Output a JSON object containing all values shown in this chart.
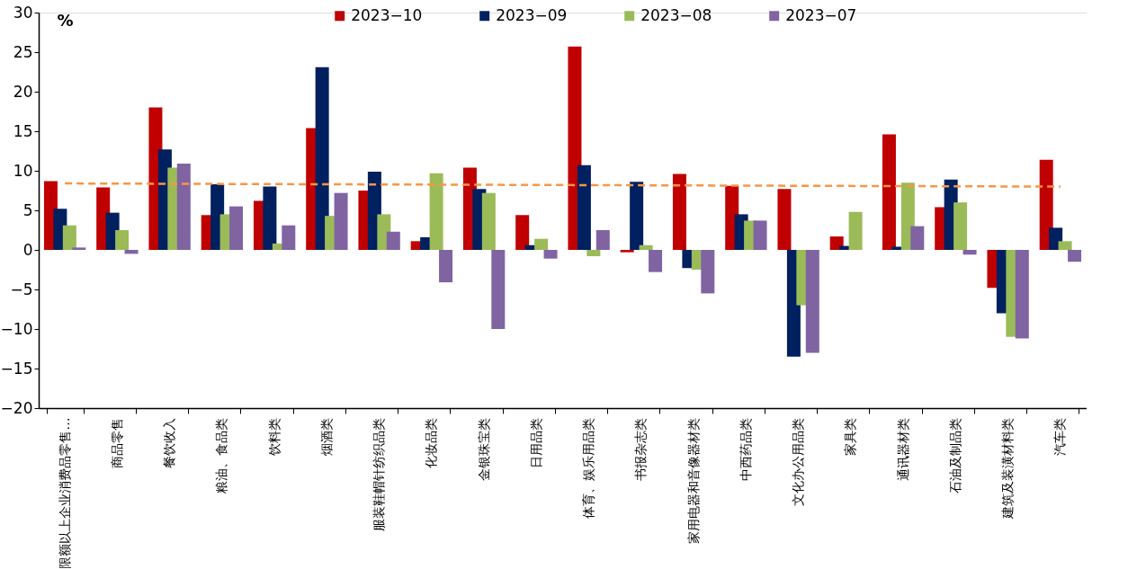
{
  "chart_data": {
    "type": "bar",
    "ylabel": "%",
    "categories": [
      "限额以上企业消费品零售…",
      "商品零售",
      "餐饮收入",
      "粮油、食品类",
      "饮料类",
      "烟酒类",
      "服装鞋帽针纺织品类",
      "化妆品类",
      "金银珠宝类",
      "日用品类",
      "体育、娱乐用品类",
      "书报杂志类",
      "家用电器和音像器材类",
      "中西药品类",
      "文化办公用品类",
      "家具类",
      "通讯器材类",
      "石油及制品类",
      "建筑及装潢材料类",
      "汽车类"
    ],
    "series": [
      {
        "name": "2023−10",
        "color": "#c00000",
        "values": [
          8.7,
          7.9,
          18.0,
          4.4,
          6.2,
          15.4,
          7.5,
          1.1,
          10.4,
          4.4,
          25.7,
          -0.3,
          9.6,
          8.1,
          7.7,
          1.7,
          14.6,
          5.4,
          -4.8,
          11.4
        ]
      },
      {
        "name": "2023−09",
        "color": "#002060",
        "values": [
          5.2,
          4.7,
          12.7,
          8.3,
          8.0,
          23.1,
          9.9,
          1.6,
          7.7,
          0.6,
          10.7,
          8.6,
          -2.3,
          4.5,
          -13.5,
          0.5,
          0.4,
          8.9,
          -8.0,
          2.8
        ]
      },
      {
        "name": "2023−08",
        "color": "#9bbb59",
        "values": [
          3.1,
          2.5,
          10.4,
          4.5,
          0.8,
          4.3,
          4.5,
          9.7,
          7.2,
          1.4,
          -0.8,
          0.6,
          -2.5,
          3.7,
          -7.0,
          4.8,
          8.5,
          6.0,
          -11.0,
          1.1
        ]
      },
      {
        "name": "2023−07",
        "color": "#8064a2",
        "values": [
          0.3,
          -0.5,
          10.9,
          5.5,
          3.1,
          7.2,
          2.3,
          -4.1,
          -10.0,
          -1.1,
          2.5,
          -2.8,
          -5.5,
          3.7,
          -13.0,
          0.0,
          3.0,
          -0.6,
          -11.2,
          -1.5
        ]
      },
      {
        "type": "line",
        "color": "#f79646",
        "line_style": "dashed",
        "x": [
          "限额以上企业消费品零售…",
          "汽车类"
        ],
        "values": [
          8.4,
          8.0
        ]
      }
    ],
    "ylim": [
      -20,
      30
    ],
    "yticks": [
      -20,
      -15,
      -10,
      -5,
      0,
      5,
      10,
      15,
      20,
      25,
      30
    ],
    "grid": false,
    "legend": "top"
  }
}
